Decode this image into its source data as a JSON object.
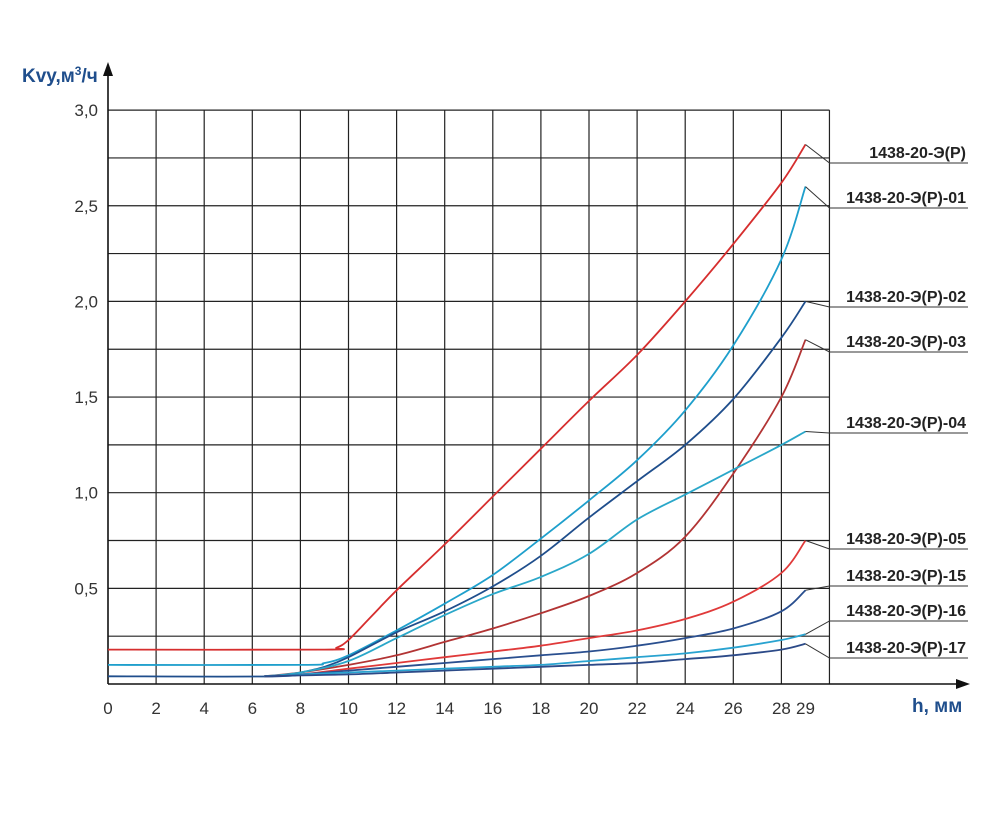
{
  "chart_data": {
    "type": "line",
    "title": "",
    "ylabel": "Kvy,м³/ч",
    "ylabel_base": "Kvy,м",
    "ylabel_sup": "3",
    "ylabel_tail": "/ч",
    "xlabel": "h, мм",
    "x_ticks": [
      "0",
      "2",
      "4",
      "6",
      "8",
      "10",
      "12",
      "14",
      "16",
      "18",
      "20",
      "22",
      "24",
      "26",
      "28",
      "29"
    ],
    "y_ticks": [
      "0,5",
      "1,0",
      "1,5",
      "2,0",
      "2,5",
      "3,0"
    ],
    "xlim": [
      0,
      29
    ],
    "ylim": [
      0,
      3.0
    ],
    "grid": true,
    "legend": "right, leader lines",
    "series": [
      {
        "name": "1438-20-Э(Р)",
        "color": "#d62e2e",
        "x": [
          0,
          9,
          9.5,
          10,
          11,
          12,
          14,
          16,
          18,
          20,
          22,
          24,
          26,
          28,
          29
        ],
        "y": [
          0.18,
          0.18,
          0.19,
          0.23,
          0.36,
          0.49,
          0.73,
          0.98,
          1.23,
          1.48,
          1.72,
          2.0,
          2.3,
          2.62,
          2.82
        ]
      },
      {
        "name": "1438-20-Э(Р)-01",
        "color": "#1e9fcc",
        "x": [
          0,
          8,
          9,
          10,
          12,
          14,
          16,
          18,
          20,
          22,
          24,
          26,
          28,
          29
        ],
        "y": [
          0.1,
          0.1,
          0.11,
          0.15,
          0.28,
          0.42,
          0.57,
          0.76,
          0.96,
          1.17,
          1.43,
          1.77,
          2.22,
          2.6
        ]
      },
      {
        "name": "1438-20-Э(Р)-02",
        "color": "#1f4e8c",
        "x": [
          0,
          7,
          8,
          9,
          10,
          12,
          14,
          16,
          18,
          20,
          22,
          24,
          26,
          28,
          29
        ],
        "y": [
          0.04,
          0.04,
          0.06,
          0.09,
          0.14,
          0.27,
          0.38,
          0.51,
          0.67,
          0.87,
          1.06,
          1.25,
          1.49,
          1.81,
          2.0
        ]
      },
      {
        "name": "1438-20-Э(Р)-03",
        "color": "#b23434",
        "x": [
          6.5,
          8,
          10,
          12,
          14,
          16,
          18,
          20,
          22,
          24,
          26,
          28,
          29
        ],
        "y": [
          0.04,
          0.06,
          0.1,
          0.15,
          0.22,
          0.29,
          0.37,
          0.46,
          0.58,
          0.77,
          1.1,
          1.5,
          1.8
        ]
      },
      {
        "name": "1438-20-Э(Р)-04",
        "color": "#2aa7c9",
        "x": [
          6.5,
          8,
          10,
          12,
          14,
          16,
          18,
          20,
          22,
          24,
          26,
          28,
          29
        ],
        "y": [
          0.04,
          0.06,
          0.12,
          0.24,
          0.36,
          0.47,
          0.56,
          0.68,
          0.86,
          0.99,
          1.12,
          1.25,
          1.32
        ]
      },
      {
        "name": "1438-20-Э(Р)-05",
        "color": "#e03a3a",
        "x": [
          6.5,
          8,
          10,
          12,
          14,
          16,
          18,
          20,
          22,
          24,
          26,
          28,
          29
        ],
        "y": [
          0.04,
          0.05,
          0.08,
          0.11,
          0.14,
          0.17,
          0.2,
          0.24,
          0.28,
          0.34,
          0.43,
          0.58,
          0.75
        ]
      },
      {
        "name": "1438-20-Э(Р)-15",
        "color": "#2a4f8f",
        "x": [
          6.5,
          8,
          10,
          12,
          14,
          16,
          18,
          20,
          22,
          24,
          26,
          28,
          29
        ],
        "y": [
          0.04,
          0.05,
          0.07,
          0.09,
          0.11,
          0.13,
          0.15,
          0.17,
          0.2,
          0.24,
          0.29,
          0.38,
          0.49
        ]
      },
      {
        "name": "1438-20-Э(Р)-16",
        "color": "#29a3d0",
        "x": [
          6.5,
          8,
          10,
          12,
          14,
          16,
          18,
          20,
          22,
          24,
          26,
          28,
          29
        ],
        "y": [
          0.04,
          0.05,
          0.06,
          0.07,
          0.08,
          0.09,
          0.1,
          0.12,
          0.14,
          0.16,
          0.19,
          0.23,
          0.26
        ]
      },
      {
        "name": "1438-20-Э(Р)-17",
        "color": "#2c4a88",
        "x": [
          6.5,
          8,
          10,
          12,
          14,
          16,
          18,
          20,
          22,
          24,
          26,
          28,
          29
        ],
        "y": [
          0.04,
          0.045,
          0.05,
          0.06,
          0.07,
          0.08,
          0.09,
          0.1,
          0.11,
          0.13,
          0.15,
          0.18,
          0.21
        ]
      }
    ]
  }
}
